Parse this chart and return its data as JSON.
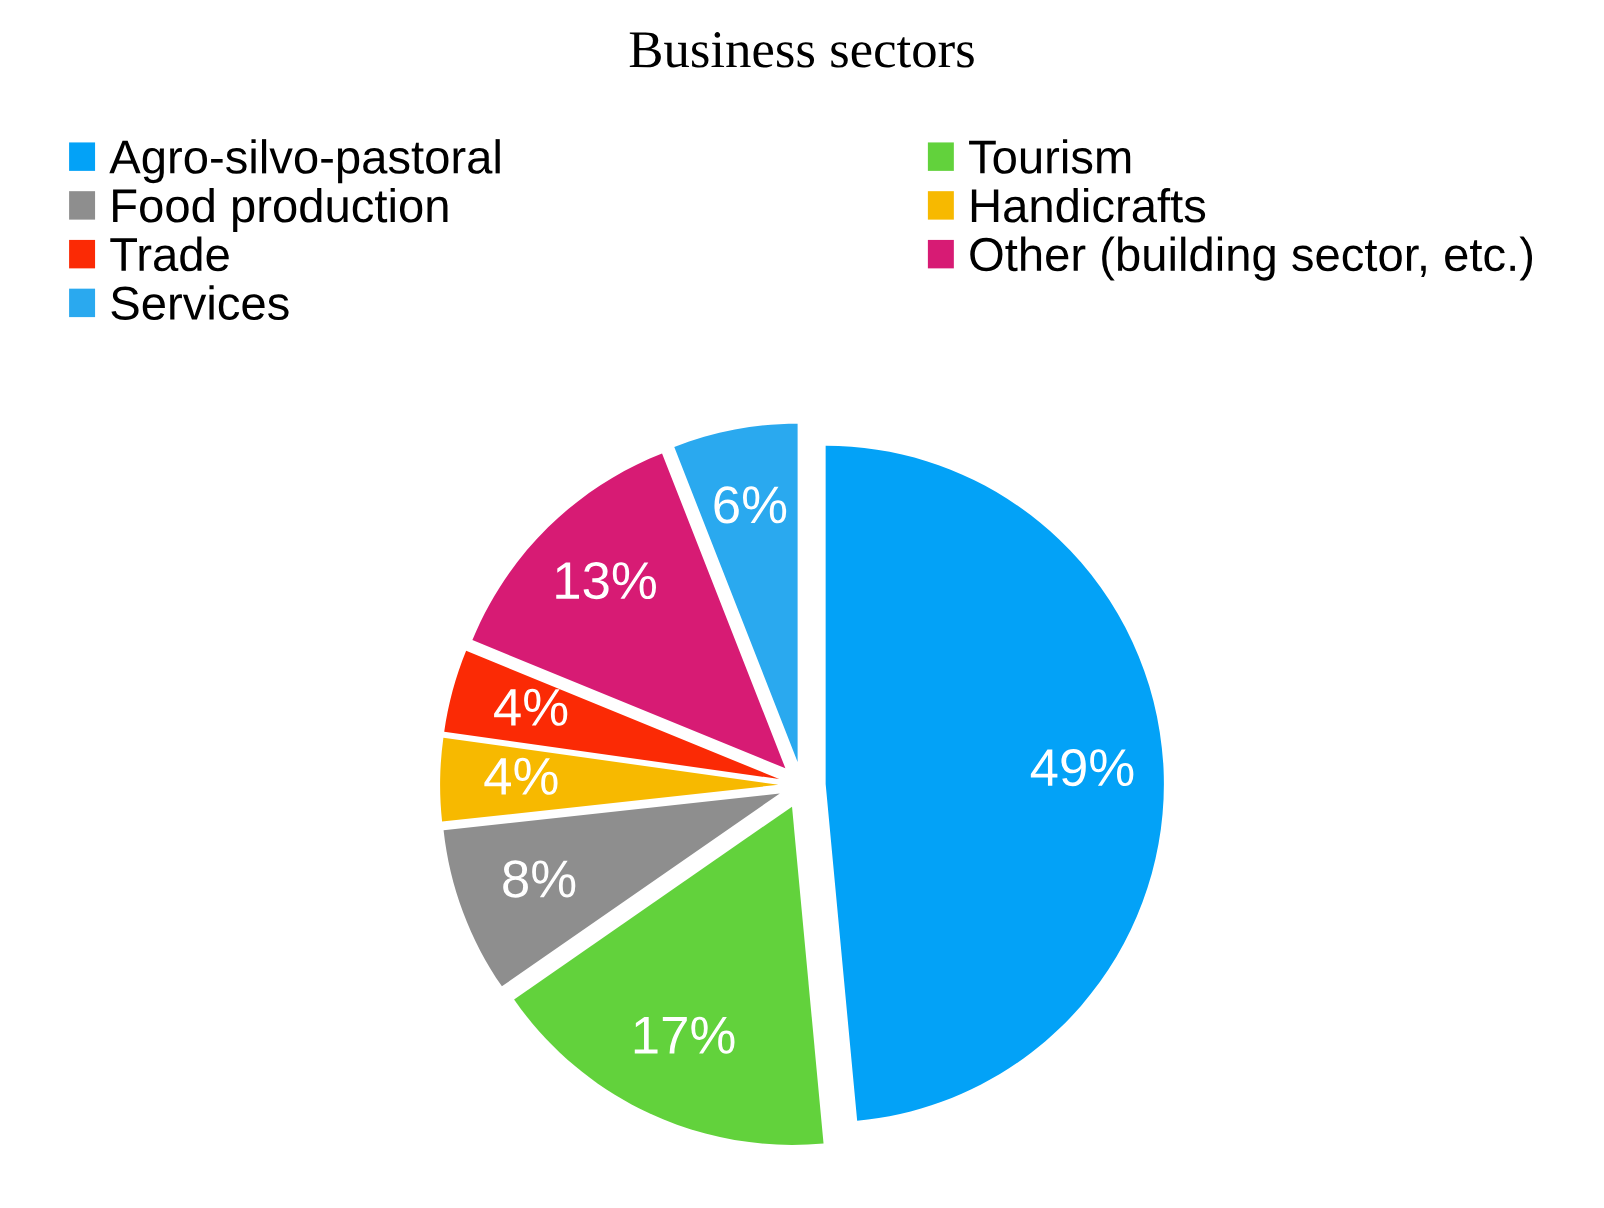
{
  "chart_data": {
    "type": "pie",
    "title": "Business sectors",
    "categories": [
      "Agro-silvo-pastoral",
      "Tourism",
      "Food production",
      "Handicrafts",
      "Trade",
      "Other (building sector, etc.)",
      "Services"
    ],
    "values": [
      49,
      17,
      8,
      4,
      4,
      13,
      6
    ],
    "colors": [
      "#03a2f7",
      "#62d23c",
      "#8e8e8e",
      "#f7b900",
      "#fb2a05",
      "#d71b74",
      "#2aa9ef"
    ],
    "value_labels": [
      "49%",
      "17%",
      "8%",
      "4%",
      "4%",
      "13%",
      "6%"
    ],
    "legend": "top"
  }
}
